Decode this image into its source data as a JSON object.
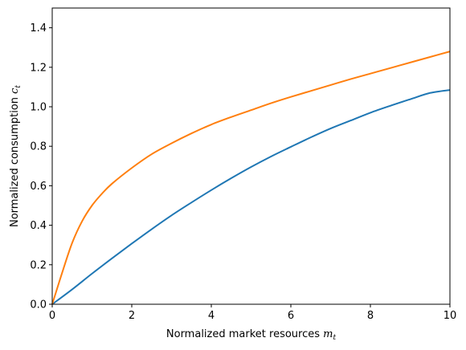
{
  "chart_data": {
    "type": "line",
    "title": "",
    "xlabel": {
      "text": "Normalized market resources ",
      "math": "m",
      "sub": "t"
    },
    "ylabel": {
      "text": "Normalized consumption ",
      "math": "c",
      "sub": "t"
    },
    "xlim": [
      0,
      10
    ],
    "ylim": [
      0,
      1.5
    ],
    "grid": false,
    "legend": "none",
    "xticks": [
      {
        "value": 0,
        "label": "0"
      },
      {
        "value": 2,
        "label": "2"
      },
      {
        "value": 4,
        "label": "4"
      },
      {
        "value": 6,
        "label": "6"
      },
      {
        "value": 8,
        "label": "8"
      },
      {
        "value": 10,
        "label": "10"
      }
    ],
    "yticks": [
      {
        "value": 0.0,
        "label": "0.0"
      },
      {
        "value": 0.2,
        "label": "0.2"
      },
      {
        "value": 0.4,
        "label": "0.4"
      },
      {
        "value": 0.6,
        "label": "0.6"
      },
      {
        "value": 0.8,
        "label": "0.8"
      },
      {
        "value": 1.0,
        "label": "1.0"
      },
      {
        "value": 1.2,
        "label": "1.2"
      },
      {
        "value": 1.4,
        "label": "1.4"
      }
    ],
    "series": [
      {
        "color": "#1f77b4",
        "x": [
          0,
          0.5,
          1,
          1.5,
          2,
          2.5,
          3,
          3.5,
          4,
          4.5,
          5,
          5.5,
          6,
          6.5,
          7,
          7.5,
          8,
          8.5,
          9,
          9.5,
          10
        ],
        "y": [
          0,
          0.075,
          0.155,
          0.232,
          0.307,
          0.38,
          0.45,
          0.515,
          0.578,
          0.638,
          0.695,
          0.748,
          0.797,
          0.845,
          0.89,
          0.93,
          0.97,
          1.005,
          1.038,
          1.07,
          1.085
        ]
      },
      {
        "color": "#ff7f0e",
        "x": [
          0,
          0.25,
          0.5,
          0.75,
          1,
          1.25,
          1.5,
          2,
          2.5,
          3,
          3.5,
          4,
          4.5,
          5,
          5.5,
          6,
          6.5,
          7,
          7.5,
          8,
          8.5,
          9,
          9.5,
          10
        ],
        "y": [
          0,
          0.16,
          0.31,
          0.42,
          0.5,
          0.56,
          0.61,
          0.69,
          0.76,
          0.815,
          0.865,
          0.91,
          0.948,
          0.983,
          1.018,
          1.05,
          1.08,
          1.11,
          1.14,
          1.168,
          1.196,
          1.224,
          1.252,
          1.28
        ]
      }
    ]
  }
}
